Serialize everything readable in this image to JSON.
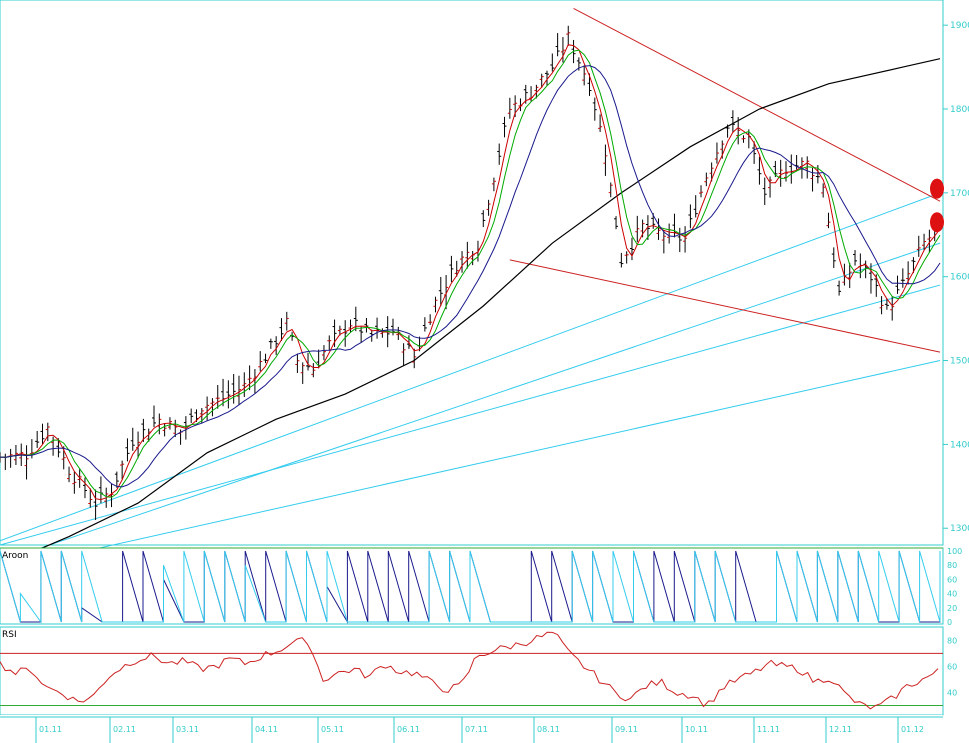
{
  "colors": {
    "accent_axis": "#33cccc",
    "price_bars": "#000000",
    "up_bar": "#cc0000",
    "ma_fast": "#00aa00",
    "ma_mid": "#1a1a8c",
    "ma_long": "#000000",
    "trend_red": "#cc2222",
    "trend_cyan": "#33ccee",
    "aroon_up": "#1a1a8c",
    "aroon_down": "#33ccee",
    "rsi_line": "#cc2222",
    "marker": "#dd1111"
  },
  "chart_data": [
    {
      "type": "candlestick",
      "title": "",
      "y_ticks": [
        "1900",
        "1800",
        "1700",
        "1600",
        "1500",
        "1400",
        "1300"
      ],
      "ylim": [
        1280,
        1930
      ],
      "x_ticks": [
        "01.11",
        "02.11",
        "03.11",
        "04.11",
        "05.11",
        "06.11",
        "07.11",
        "08.11",
        "09.11",
        "10.11",
        "11.11",
        "12.11",
        "01.12"
      ],
      "price_path": [
        [
          0,
          1385
        ],
        [
          5,
          1388
        ],
        [
          9,
          1420
        ],
        [
          13,
          1370
        ],
        [
          18,
          1330
        ],
        [
          21,
          1345
        ],
        [
          25,
          1405
        ],
        [
          30,
          1430
        ],
        [
          34,
          1415
        ],
        [
          38,
          1445
        ],
        [
          42,
          1455
        ],
        [
          46,
          1470
        ],
        [
          50,
          1505
        ],
        [
          54,
          1545
        ],
        [
          56,
          1500
        ],
        [
          59,
          1490
        ],
        [
          62,
          1520
        ],
        [
          66,
          1545
        ],
        [
          70,
          1530
        ],
        [
          74,
          1535
        ],
        [
          78,
          1505
        ],
        [
          82,
          1570
        ],
        [
          86,
          1615
        ],
        [
          90,
          1640
        ],
        [
          93,
          1720
        ],
        [
          96,
          1800
        ],
        [
          100,
          1820
        ],
        [
          104,
          1850
        ],
        [
          107,
          1885
        ],
        [
          111,
          1830
        ],
        [
          114,
          1750
        ],
        [
          117,
          1620
        ],
        [
          121,
          1660
        ],
        [
          125,
          1650
        ],
        [
          129,
          1645
        ],
        [
          133,
          1720
        ],
        [
          137,
          1780
        ],
        [
          141,
          1765
        ],
        [
          144,
          1700
        ],
        [
          148,
          1730
        ],
        [
          152,
          1735
        ],
        [
          155,
          1710
        ],
        [
          158,
          1580
        ],
        [
          161,
          1620
        ],
        [
          164,
          1600
        ],
        [
          167,
          1560
        ],
        [
          170,
          1590
        ],
        [
          174,
          1640
        ],
        [
          177,
          1660
        ]
      ],
      "ma200_path": [
        [
          0,
          1255
        ],
        [
          13,
          1290
        ],
        [
          26,
          1330
        ],
        [
          39,
          1390
        ],
        [
          52,
          1430
        ],
        [
          65,
          1460
        ],
        [
          78,
          1500
        ],
        [
          91,
          1565
        ],
        [
          104,
          1640
        ],
        [
          117,
          1700
        ],
        [
          130,
          1755
        ],
        [
          143,
          1800
        ],
        [
          156,
          1830
        ],
        [
          170,
          1850
        ],
        [
          177,
          1860
        ]
      ],
      "markers": [
        1705,
        1665
      ],
      "trendlines_red": [
        [
          [
            108,
            1920
          ],
          [
            177,
            1690
          ]
        ],
        [
          [
            96,
            1620
          ],
          [
            177,
            1510
          ]
        ]
      ],
      "trendlines_cyan": [
        [
          [
            0,
            1285
          ],
          [
            177,
            1700
          ]
        ],
        [
          [
            0,
            1260
          ],
          [
            177,
            1640
          ]
        ],
        [
          [
            0,
            1280
          ],
          [
            177,
            1590
          ]
        ],
        [
          [
            0,
            1250
          ],
          [
            177,
            1500
          ]
        ]
      ]
    },
    {
      "type": "line",
      "title": "Aroon",
      "y_ticks": [
        "100",
        "80",
        "60",
        "40",
        "20",
        "0"
      ],
      "ylim": [
        0,
        100
      ],
      "series": [
        {
          "name": "",
          "values": [
            100,
            0,
            100,
            100,
            20,
            0,
            100,
            100,
            60,
            0,
            100,
            100,
            100,
            100,
            100,
            100,
            50,
            100,
            100,
            100,
            100,
            100,
            100,
            100,
            0,
            0,
            100,
            100,
            100,
            100,
            0,
            100,
            100,
            100,
            100,
            100,
            100,
            0,
            100,
            100,
            100,
            100,
            100,
            0,
            100,
            0,
            100
          ]
        },
        {
          "name": "",
          "values": [
            100,
            40,
            100,
            100,
            100,
            0,
            0,
            0,
            80,
            100,
            100,
            100,
            80,
            0,
            100,
            100,
            100,
            0,
            0,
            0,
            0,
            100,
            100,
            100,
            0,
            0,
            0,
            0,
            100,
            100,
            100,
            100,
            0,
            0,
            100,
            100,
            0,
            0,
            100,
            100,
            100,
            100,
            100,
            100,
            100,
            100,
            100
          ]
        }
      ]
    },
    {
      "type": "line",
      "title": "RSI",
      "y_ticks": [
        "80",
        "60",
        "40"
      ],
      "ylim": [
        25,
        88
      ],
      "levels": [
        70,
        30
      ],
      "series": [
        {
          "name": "",
          "values": [
            62,
            55,
            58,
            44,
            40,
            33,
            36,
            52,
            60,
            66,
            68,
            62,
            64,
            58,
            60,
            66,
            62,
            68,
            72,
            78,
            80,
            50,
            55,
            58,
            52,
            62,
            56,
            55,
            48,
            42,
            45,
            68,
            72,
            75,
            78,
            82,
            86,
            70,
            60,
            50,
            40,
            35,
            45,
            48,
            40,
            38,
            30,
            44,
            50,
            55,
            62,
            60,
            58,
            48,
            52,
            38,
            30,
            28,
            35,
            45,
            50,
            56
          ]
        }
      ]
    }
  ]
}
